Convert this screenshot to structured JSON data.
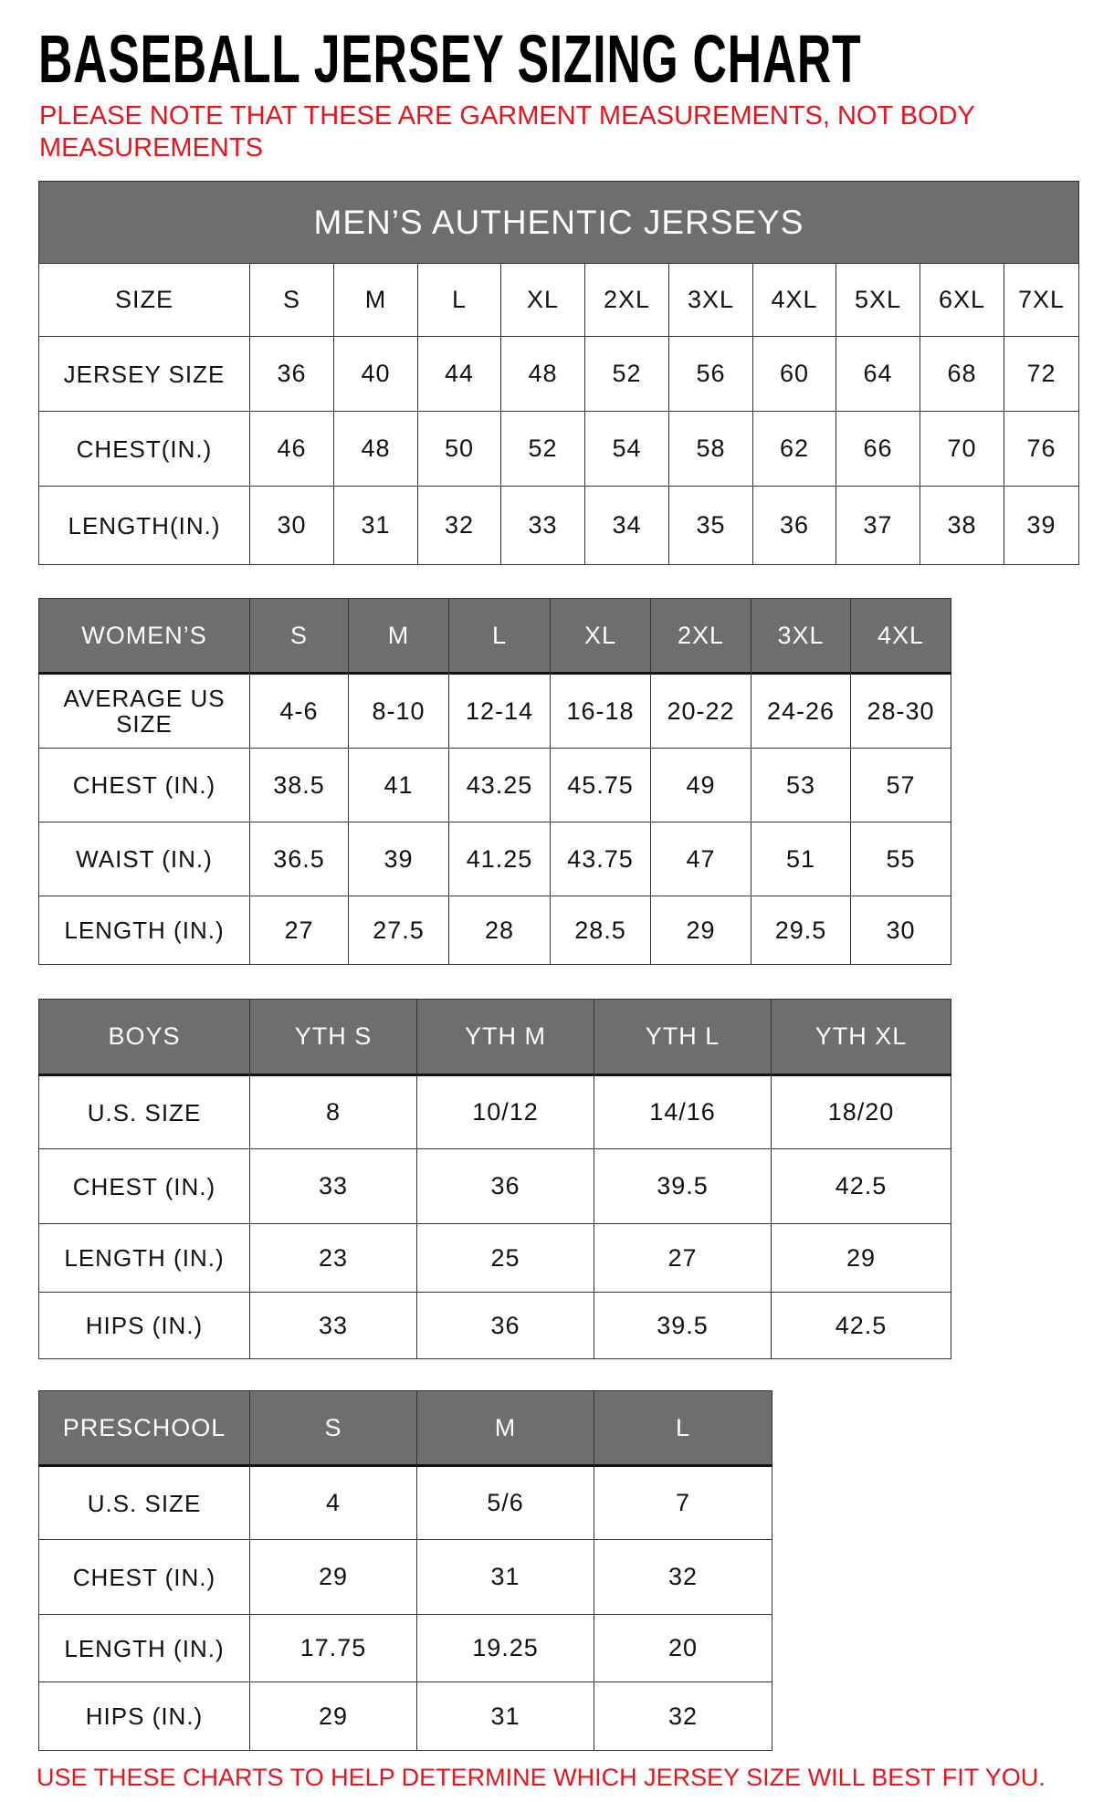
{
  "title": "BASEBALL JERSEY SIZING CHART",
  "note": "PLEASE NOTE THAT THESE ARE GARMENT MEASUREMENTS, NOT BODY MEASUREMENTS",
  "footer": "USE THESE CHARTS TO HELP DETERMINE WHICH JERSEY SIZE WILL BEST FIT YOU.",
  "colors": {
    "header_fill": "#6e6e6e",
    "header_text": "#ffffff",
    "note_red": "#e8141c"
  },
  "tables": [
    {
      "id": "mens",
      "banner": "MEN’S AUTHENTIC JERSEYS",
      "header_filled": false,
      "headers": [
        "SIZE",
        "S",
        "M",
        "L",
        "XL",
        "2XL",
        "3XL",
        "4XL",
        "5XL",
        "6XL",
        "7XL"
      ],
      "rows": [
        [
          "JERSEY SIZE",
          "36",
          "40",
          "44",
          "48",
          "52",
          "56",
          "60",
          "64",
          "68",
          "72"
        ],
        [
          "CHEST(IN.)",
          "46",
          "48",
          "50",
          "52",
          "54",
          "58",
          "62",
          "66",
          "70",
          "76"
        ],
        [
          "LENGTH(IN.)",
          "30",
          "31",
          "32",
          "33",
          "34",
          "35",
          "36",
          "37",
          "38",
          "39"
        ]
      ]
    },
    {
      "id": "womens",
      "header_filled": true,
      "headers": [
        "WOMEN’S",
        "S",
        "M",
        "L",
        "XL",
        "2XL",
        "3XL",
        "4XL"
      ],
      "rows": [
        [
          "AVERAGE US SIZE",
          "4-6",
          "8-10",
          "12-14",
          "16-18",
          "20-22",
          "24-26",
          "28-30"
        ],
        [
          "CHEST (IN.)",
          "38.5",
          "41",
          "43.25",
          "45.75",
          "49",
          "53",
          "57"
        ],
        [
          "WAIST (IN.)",
          "36.5",
          "39",
          "41.25",
          "43.75",
          "47",
          "51",
          "55"
        ],
        [
          "LENGTH (IN.)",
          "27",
          "27.5",
          "28",
          "28.5",
          "29",
          "29.5",
          "30"
        ]
      ]
    },
    {
      "id": "boys",
      "header_filled": true,
      "headers": [
        "BOYS",
        "YTH S",
        "YTH M",
        "YTH L",
        "YTH XL"
      ],
      "rows": [
        [
          "U.S. SIZE",
          "8",
          "10/12",
          "14/16",
          "18/20"
        ],
        [
          "CHEST (IN.)",
          "33",
          "36",
          "39.5",
          "42.5"
        ],
        [
          "LENGTH (IN.)",
          "23",
          "25",
          "27",
          "29"
        ],
        [
          "HIPS (IN.)",
          "33",
          "36",
          "39.5",
          "42.5"
        ]
      ]
    },
    {
      "id": "preschool",
      "header_filled": true,
      "headers": [
        "PRESCHOOL",
        "S",
        "M",
        "L"
      ],
      "rows": [
        [
          "U.S. SIZE",
          "4",
          "5/6",
          "7"
        ],
        [
          "CHEST (IN.)",
          "29",
          "31",
          "32"
        ],
        [
          "LENGTH (IN.)",
          "17.75",
          "19.25",
          "20"
        ],
        [
          "HIPS (IN.)",
          "29",
          "31",
          "32"
        ]
      ]
    }
  ]
}
